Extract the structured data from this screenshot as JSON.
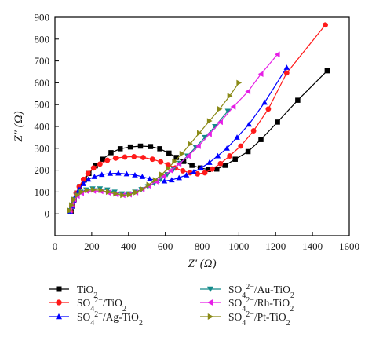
{
  "chart_data": {
    "type": "scatter",
    "xlabel": "Z′ (Ω)",
    "ylabel": "Z″ (Ω)",
    "xlim": [
      0,
      1600
    ],
    "ylim": [
      -100,
      900
    ],
    "xticks": [
      "0",
      "200",
      "400",
      "600",
      "800",
      "1000",
      "1200",
      "1400",
      "1600"
    ],
    "yticks": [
      "0",
      "100",
      "200",
      "300",
      "400",
      "500",
      "600",
      "700",
      "800",
      "900"
    ],
    "grid": false,
    "legend_position": "bottom",
    "series": [
      {
        "name": "TiO2",
        "label_html": "TiO<tspan baseline-shift='sub' font-size='10'>2</tspan>",
        "color": "#000000",
        "marker": "square",
        "points": [
          [
            88,
            10
          ],
          [
            95,
            35
          ],
          [
            105,
            65
          ],
          [
            118,
            95
          ],
          [
            135,
            125
          ],
          [
            160,
            155
          ],
          [
            185,
            185
          ],
          [
            220,
            220
          ],
          [
            260,
            250
          ],
          [
            305,
            280
          ],
          [
            355,
            298
          ],
          [
            410,
            306
          ],
          [
            465,
            310
          ],
          [
            520,
            308
          ],
          [
            570,
            298
          ],
          [
            620,
            278
          ],
          [
            660,
            258
          ],
          [
            700,
            240
          ],
          [
            745,
            222
          ],
          [
            790,
            210
          ],
          [
            835,
            203
          ],
          [
            880,
            205
          ],
          [
            925,
            222
          ],
          [
            980,
            250
          ],
          [
            1050,
            285
          ],
          [
            1120,
            340
          ],
          [
            1210,
            420
          ],
          [
            1320,
            520
          ],
          [
            1480,
            655
          ]
        ]
      },
      {
        "name": "SO42−/TiO2",
        "label_html": "SO<tspan baseline-shift='sub' font-size='10'>4</tspan><tspan baseline-shift='super' font-size='10'>2−</tspan>/TiO<tspan baseline-shift='sub' font-size='10'>2</tspan>",
        "color": "#ff1a1a",
        "marker": "circle",
        "points": [
          [
            85,
            10
          ],
          [
            92,
            35
          ],
          [
            102,
            65
          ],
          [
            115,
            95
          ],
          [
            132,
            125
          ],
          [
            155,
            158
          ],
          [
            180,
            185
          ],
          [
            210,
            210
          ],
          [
            245,
            228
          ],
          [
            285,
            245
          ],
          [
            330,
            255
          ],
          [
            380,
            260
          ],
          [
            430,
            262
          ],
          [
            480,
            258
          ],
          [
            530,
            250
          ],
          [
            575,
            238
          ],
          [
            615,
            225
          ],
          [
            655,
            210
          ],
          [
            695,
            197
          ],
          [
            735,
            188
          ],
          [
            775,
            183
          ],
          [
            815,
            188
          ],
          [
            855,
            205
          ],
          [
            900,
            230
          ],
          [
            950,
            265
          ],
          [
            1010,
            310
          ],
          [
            1080,
            380
          ],
          [
            1160,
            480
          ],
          [
            1260,
            645
          ],
          [
            1470,
            865
          ]
        ]
      },
      {
        "name": "SO42−/Ag-TiO2",
        "label_html": "SO<tspan baseline-shift='sub' font-size='10'>4</tspan><tspan baseline-shift='super' font-size='10'>2−</tspan>/Ag-TiO<tspan baseline-shift='sub' font-size='10'>2</tspan>",
        "color": "#0000ff",
        "marker": "triangle-up",
        "points": [
          [
            84,
            10
          ],
          [
            92,
            35
          ],
          [
            102,
            60
          ],
          [
            115,
            85
          ],
          [
            132,
            112
          ],
          [
            155,
            138
          ],
          [
            182,
            158
          ],
          [
            215,
            170
          ],
          [
            255,
            180
          ],
          [
            300,
            185
          ],
          [
            345,
            186
          ],
          [
            390,
            183
          ],
          [
            435,
            178
          ],
          [
            475,
            170
          ],
          [
            515,
            160
          ],
          [
            555,
            152
          ],
          [
            595,
            150
          ],
          [
            635,
            155
          ],
          [
            675,
            165
          ],
          [
            715,
            178
          ],
          [
            755,
            192
          ],
          [
            795,
            210
          ],
          [
            840,
            235
          ],
          [
            885,
            265
          ],
          [
            935,
            300
          ],
          [
            990,
            350
          ],
          [
            1055,
            410
          ],
          [
            1140,
            510
          ],
          [
            1260,
            670
          ]
        ]
      },
      {
        "name": "SO42−/Au-TiO2",
        "label_html": "SO<tspan baseline-shift='sub' font-size='10'>4</tspan><tspan baseline-shift='super' font-size='10'>2−</tspan>/Au-TiO<tspan baseline-shift='sub' font-size='10'>2</tspan>",
        "color": "#138a8a",
        "marker": "triangle-down",
        "points": [
          [
            80,
            15
          ],
          [
            90,
            40
          ],
          [
            102,
            65
          ],
          [
            118,
            85
          ],
          [
            140,
            100
          ],
          [
            170,
            110
          ],
          [
            205,
            115
          ],
          [
            245,
            115
          ],
          [
            285,
            110
          ],
          [
            325,
            100
          ],
          [
            365,
            92
          ],
          [
            400,
            92
          ],
          [
            435,
            100
          ],
          [
            470,
            112
          ],
          [
            505,
            125
          ],
          [
            540,
            140
          ],
          [
            575,
            158
          ],
          [
            610,
            180
          ],
          [
            645,
            205
          ],
          [
            680,
            232
          ],
          [
            720,
            265
          ],
          [
            765,
            305
          ],
          [
            815,
            350
          ],
          [
            870,
            400
          ],
          [
            940,
            470
          ]
        ]
      },
      {
        "name": "SO42−/Rh-TiO2",
        "label_html": "SO<tspan baseline-shift='sub' font-size='10'>4</tspan><tspan baseline-shift='super' font-size='10'>2−</tspan>/Rh-TiO<tspan baseline-shift='sub' font-size='10'>2</tspan>",
        "color": "#e61ee6",
        "marker": "triangle-left",
        "points": [
          [
            82,
            15
          ],
          [
            92,
            40
          ],
          [
            105,
            65
          ],
          [
            122,
            82
          ],
          [
            145,
            95
          ],
          [
            175,
            103
          ],
          [
            210,
            105
          ],
          [
            250,
            103
          ],
          [
            290,
            97
          ],
          [
            330,
            90
          ],
          [
            370,
            85
          ],
          [
            405,
            88
          ],
          [
            440,
            98
          ],
          [
            475,
            112
          ],
          [
            510,
            128
          ],
          [
            550,
            148
          ],
          [
            590,
            172
          ],
          [
            630,
            198
          ],
          [
            675,
            228
          ],
          [
            725,
            265
          ],
          [
            780,
            310
          ],
          [
            840,
            365
          ],
          [
            900,
            420
          ],
          [
            970,
            490
          ],
          [
            1050,
            560
          ],
          [
            1120,
            640
          ],
          [
            1210,
            730
          ]
        ]
      },
      {
        "name": "SO42−/Pt-TiO2",
        "label_html": "SO<tspan baseline-shift='sub' font-size='10'>4</tspan><tspan baseline-shift='super' font-size='10'>2−</tspan>/Pt-TiO<tspan baseline-shift='sub' font-size='10'>2</tspan>",
        "color": "#8a8a16",
        "marker": "triangle-right",
        "points": [
          [
            80,
            15
          ],
          [
            90,
            40
          ],
          [
            103,
            65
          ],
          [
            120,
            85
          ],
          [
            145,
            100
          ],
          [
            175,
            108
          ],
          [
            210,
            110
          ],
          [
            250,
            108
          ],
          [
            290,
            100
          ],
          [
            330,
            92
          ],
          [
            368,
            85
          ],
          [
            405,
            88
          ],
          [
            440,
            98
          ],
          [
            475,
            113
          ],
          [
            510,
            133
          ],
          [
            545,
            155
          ],
          [
            580,
            180
          ],
          [
            615,
            208
          ],
          [
            650,
            240
          ],
          [
            690,
            275
          ],
          [
            735,
            320
          ],
          [
            785,
            370
          ],
          [
            840,
            425
          ],
          [
            895,
            480
          ],
          [
            950,
            540
          ],
          [
            1000,
            600
          ]
        ]
      }
    ]
  }
}
